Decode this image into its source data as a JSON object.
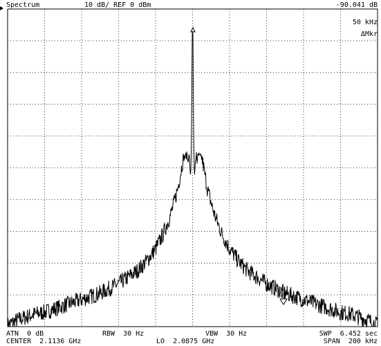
{
  "header": {
    "mode": "Spectrum",
    "scale": "10 dB/ REF 0 dBm",
    "marker_value": "-90.041 dB",
    "marker_offset": "50 kHz",
    "marker_mode": "ΔMkr",
    "marker_label": "0"
  },
  "footer": {
    "atn": "ATN  0 dB",
    "rbw": "RBW  30 Hz",
    "vbw": "VBW  30 Hz",
    "swp": "SWP  6.452 sec",
    "center": "CENTER  2.1136 GHz",
    "lo": "LO  2.0875 GHz",
    "span": "SPAN  200 kHz"
  },
  "colors": {
    "trace": "#000000",
    "grid": "#000000",
    "background": "#ffffff"
  },
  "chart_data": {
    "type": "line",
    "x_unit": "kHz offset from center",
    "y_unit": "dBm",
    "xlim": [
      -100,
      100
    ],
    "ylim": [
      -100,
      0
    ],
    "grid": true,
    "series": [
      {
        "x": [
          -100,
          -95,
          -90,
          -85,
          -80,
          -75,
          -70,
          -65,
          -60,
          -55,
          -50,
          -45,
          -40,
          -35,
          -30,
          -25,
          -20,
          -16,
          -12,
          -10,
          -8,
          -6,
          -5,
          -4,
          -3,
          -2.5,
          -2,
          -1.5,
          -1,
          -0.5,
          0,
          0.5,
          1,
          1.5,
          2,
          2.5,
          3,
          4,
          5,
          6,
          8,
          10,
          12,
          16,
          20,
          25,
          30,
          35,
          40,
          45,
          50,
          55,
          60,
          65,
          70,
          75,
          80,
          85,
          90,
          95,
          100
        ],
        "y": [
          -99.5,
          -98,
          -97,
          -96,
          -95.5,
          -94.5,
          -93.5,
          -92.5,
          -91.5,
          -90.5,
          -89.5,
          -88,
          -86.5,
          -84.5,
          -82.5,
          -79.5,
          -75.5,
          -71,
          -65,
          -61,
          -56.5,
          -50,
          -47,
          -46.5,
          -46,
          -48.5,
          -45,
          -49,
          -53,
          -40,
          -7,
          -40,
          -53,
          -49,
          -45,
          -48.5,
          -46,
          -46.5,
          -47,
          -50,
          -56.5,
          -61,
          -65,
          -71,
          -75.5,
          -79.5,
          -82.5,
          -84.5,
          -86.5,
          -88,
          -89.5,
          -90.5,
          -91.5,
          -92.5,
          -93.5,
          -94.5,
          -95.5,
          -96,
          -97,
          -98,
          -99.5
        ]
      }
    ]
  }
}
